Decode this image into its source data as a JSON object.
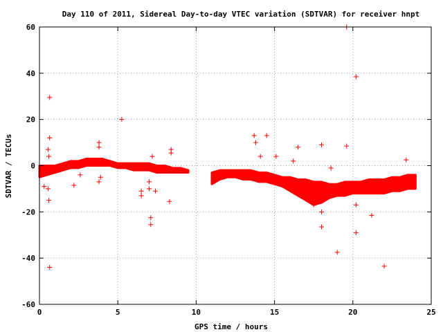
{
  "chart_data": {
    "type": "scatter",
    "title": "Day 110 of 2011, Sidereal Day-to-day VTEC variation (SDTVAR) for receiver hnpt",
    "xlabel": "GPS time / hours",
    "ylabel": "SDTVAR / TECUs",
    "xlim": [
      0,
      25
    ],
    "ylim": [
      -60,
      60
    ],
    "xticks": [
      0,
      5,
      10,
      15,
      20,
      25
    ],
    "yticks": [
      -60,
      -40,
      -20,
      0,
      20,
      40,
      60
    ],
    "grid": true,
    "marker": "plus",
    "color": "#ff0000",
    "bands": [
      {
        "x": [
          0,
          0.5,
          1,
          1.5,
          2,
          2.5,
          3,
          3.5,
          4,
          4.5,
          5,
          5.5,
          6,
          6.5,
          7,
          7.5,
          8,
          8.5,
          9,
          9.5
        ],
        "low": [
          -5,
          -4,
          -3,
          -2,
          -1,
          -1,
          0,
          0,
          0,
          0,
          -1,
          -1,
          -2,
          -2,
          -2,
          -3,
          -3,
          -3,
          -3,
          -3
        ],
        "high": [
          0,
          0,
          0,
          1,
          2,
          2,
          3,
          3,
          3,
          2,
          1,
          1,
          1,
          1,
          1,
          0,
          0,
          -1,
          -1,
          -2
        ]
      },
      {
        "x": [
          11,
          11.5,
          12,
          12.5,
          13,
          13.5,
          14,
          14.5,
          15,
          15.5,
          16,
          16.5,
          17,
          17.5,
          18,
          18.5,
          19,
          19.5,
          20,
          20.5,
          21,
          21.5,
          22,
          22.5,
          23,
          23.5,
          24
        ],
        "low": [
          -8,
          -6,
          -5,
          -5,
          -6,
          -6,
          -7,
          -7,
          -8,
          -9,
          -11,
          -13,
          -15,
          -17,
          -16,
          -14,
          -13,
          -13,
          -12,
          -12,
          -12,
          -12,
          -12,
          -11,
          -11,
          -10,
          -10
        ],
        "high": [
          -3,
          -2,
          -2,
          -2,
          -2,
          -2,
          -3,
          -3,
          -4,
          -5,
          -5,
          -6,
          -6,
          -7,
          -7,
          -8,
          -8,
          -7,
          -7,
          -7,
          -6,
          -6,
          -6,
          -5,
          -5,
          -4,
          -4
        ]
      }
    ],
    "points": [
      {
        "x": 0.65,
        "y": 29.5
      },
      {
        "x": 0.65,
        "y": 12
      },
      {
        "x": 0.55,
        "y": 7
      },
      {
        "x": 0.6,
        "y": 4
      },
      {
        "x": 0.3,
        "y": -9
      },
      {
        "x": 0.55,
        "y": -10
      },
      {
        "x": 0.6,
        "y": -15
      },
      {
        "x": 0.65,
        "y": -44
      },
      {
        "x": 2.2,
        "y": -8.5
      },
      {
        "x": 2.6,
        "y": -4
      },
      {
        "x": 3.8,
        "y": 10
      },
      {
        "x": 3.8,
        "y": 8
      },
      {
        "x": 3.8,
        "y": -7
      },
      {
        "x": 3.9,
        "y": -5
      },
      {
        "x": 5.25,
        "y": 20
      },
      {
        "x": 6.5,
        "y": -11
      },
      {
        "x": 6.5,
        "y": -13
      },
      {
        "x": 7.0,
        "y": -10
      },
      {
        "x": 7.0,
        "y": -7
      },
      {
        "x": 7.1,
        "y": -22.5
      },
      {
        "x": 7.1,
        "y": -25.5
      },
      {
        "x": 7.2,
        "y": 4
      },
      {
        "x": 7.4,
        "y": -11
      },
      {
        "x": 8.4,
        "y": 7
      },
      {
        "x": 8.4,
        "y": 5.5
      },
      {
        "x": 8.3,
        "y": -15.5
      },
      {
        "x": 13.7,
        "y": 13
      },
      {
        "x": 13.8,
        "y": 10
      },
      {
        "x": 14.1,
        "y": 4
      },
      {
        "x": 14.5,
        "y": 13
      },
      {
        "x": 15.1,
        "y": 4
      },
      {
        "x": 16.2,
        "y": 2
      },
      {
        "x": 16.5,
        "y": 8
      },
      {
        "x": 16.1,
        "y": -10
      },
      {
        "x": 17.5,
        "y": -17
      },
      {
        "x": 18.0,
        "y": 9
      },
      {
        "x": 18.0,
        "y": -20
      },
      {
        "x": 18.0,
        "y": -26.5
      },
      {
        "x": 18.6,
        "y": -1
      },
      {
        "x": 19.0,
        "y": -37.5
      },
      {
        "x": 19.6,
        "y": 8.5
      },
      {
        "x": 19.6,
        "y": 60
      },
      {
        "x": 20.2,
        "y": 38.5
      },
      {
        "x": 20.2,
        "y": -17
      },
      {
        "x": 20.2,
        "y": -29
      },
      {
        "x": 21.2,
        "y": -21.5
      },
      {
        "x": 22.0,
        "y": -43.5
      },
      {
        "x": 23.4,
        "y": 2.5
      }
    ]
  }
}
